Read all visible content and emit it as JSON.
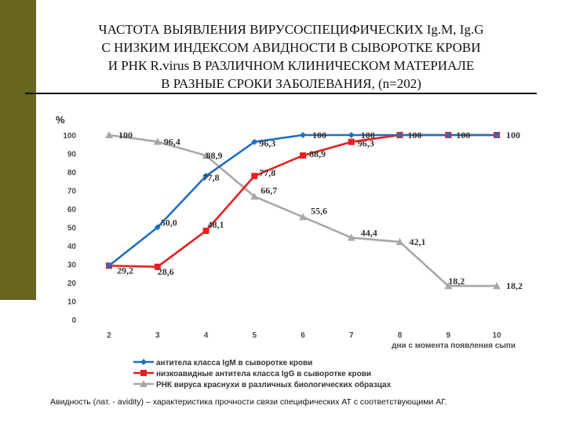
{
  "slide": {
    "title_lines": [
      "ЧАСТОТА ВЫЯВЛЕНИЯ ВИРУСОСПЕЦИФИЧЕСКИХ Ig.M, Ig.G",
      "С НИЗКИМ ИНДЕКСОМ АВИДНОСТИ В СЫВОРОТКЕ КРОВИ",
      "И РНК R.virus В РАЗЛИЧНОМ КЛИНИЧЕСКОМ МАТЕРИАЛЕ",
      "В РАЗНЫЕ СРОКИ ЗАБОЛЕВАНИЯ, (n=202)"
    ],
    "footer_text": "Авидность (лат. - avidity) – характеристика прочности связи специфических АТ с соответствующими АГ.",
    "accent_color": "#676621"
  },
  "chart_data": {
    "type": "line",
    "ylabel": "%",
    "xlabel": "дни с момента появления сыпи",
    "ylim": [
      0,
      100
    ],
    "yticks": [
      0,
      10,
      20,
      30,
      40,
      50,
      60,
      70,
      80,
      90,
      100
    ],
    "categories": [
      "2",
      "3",
      "4",
      "5",
      "6",
      "7",
      "8",
      "9",
      "10"
    ],
    "legend_position": "bottom",
    "grid": false,
    "series": [
      {
        "name": "антитела класса IgM в сыворотке крови",
        "color": "#1f6fc0",
        "marker": "diamond",
        "values": [
          29.2,
          50.0,
          77.8,
          96.3,
          100,
          100,
          100,
          100,
          100
        ],
        "labels": [
          "",
          "50,0",
          "77,8",
          "96,3",
          "100",
          "100",
          "",
          "",
          ""
        ]
      },
      {
        "name": "низкоавидные антитела класса IgG в сыворотке крови",
        "color": "#e8201f",
        "marker": "square",
        "values": [
          29.2,
          28.6,
          48.1,
          77.8,
          88.9,
          96.3,
          100,
          100,
          100
        ],
        "labels": [
          "29,2",
          "28,6",
          "48,1",
          "77,8",
          "88,9",
          "96,3",
          "100",
          "100",
          "100"
        ]
      },
      {
        "name": "РНК вируса краснухи в различных биологических образцах",
        "color": "#a8a8a8",
        "marker": "triangle",
        "values": [
          100,
          96.4,
          88.9,
          66.7,
          55.6,
          44.4,
          42.1,
          18.2,
          18.2
        ],
        "labels": [
          "100",
          "96,4",
          "88,9",
          "66,7",
          "55,6",
          "44,4",
          "42,1",
          "18,2",
          "18,2"
        ]
      }
    ]
  }
}
